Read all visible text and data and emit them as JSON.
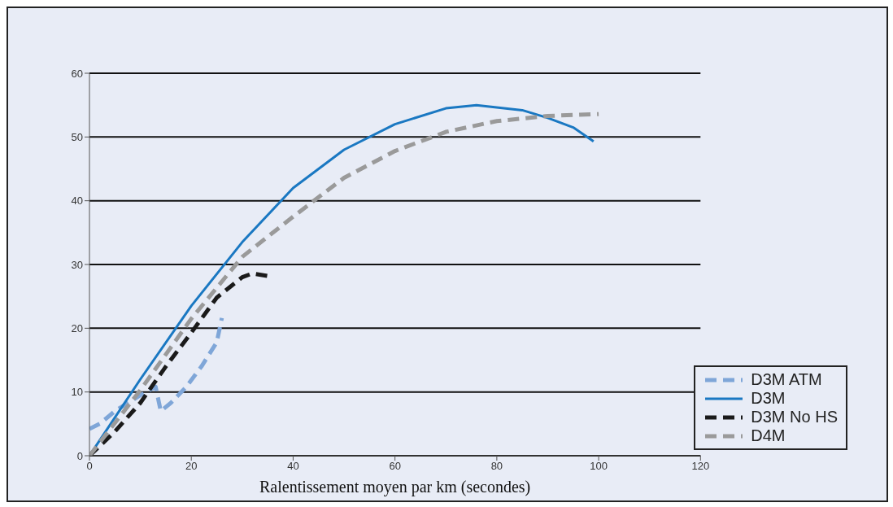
{
  "chart_data": {
    "type": "line",
    "xlabel": "Ralentissement moyen par km (secondes)",
    "xlim": [
      0,
      120
    ],
    "xticks": [
      0,
      20,
      40,
      60,
      80,
      100,
      120
    ],
    "ylim": [
      0,
      60
    ],
    "yticks": [
      0,
      10,
      20,
      30,
      40,
      50,
      60
    ],
    "grid": "y",
    "legend": "bottom right",
    "marker": "none",
    "series": [
      {
        "name": "D3M ATM",
        "color": "#7fa6d8",
        "line_style": "dashed",
        "x": [
          0,
          2,
          5,
          10,
          13,
          14,
          16,
          19,
          22,
          25,
          26
        ],
        "values": [
          4.2,
          5,
          7,
          9.5,
          10.8,
          7,
          8.3,
          10.8,
          14,
          17.8,
          21.6
        ]
      },
      {
        "name": "D3M",
        "color": "#1a78c2",
        "line_style": "solid",
        "x": [
          0,
          10,
          20,
          30,
          40,
          50,
          60,
          70,
          76,
          85,
          90,
          95,
          99
        ],
        "values": [
          0,
          12,
          23.5,
          33.5,
          42,
          48,
          52,
          54.5,
          55,
          54.2,
          53,
          51.5,
          49.3
        ]
      },
      {
        "name": "D3M No HS",
        "color": "#1a1a1a",
        "line_style": "dashed",
        "x": [
          0,
          5,
          10,
          15,
          20,
          25,
          30,
          32,
          35
        ],
        "values": [
          0,
          3.8,
          8.3,
          14,
          19.3,
          24.8,
          28,
          28.6,
          28.2
        ]
      },
      {
        "name": "D4M",
        "color": "#9a9a9a",
        "line_style": "dashed",
        "x": [
          0,
          10,
          20,
          30,
          40,
          50,
          60,
          70,
          80,
          90,
          100
        ],
        "values": [
          0,
          10.3,
          21.5,
          31.2,
          37.5,
          43.6,
          47.8,
          50.8,
          52.5,
          53.3,
          53.6
        ]
      }
    ]
  }
}
